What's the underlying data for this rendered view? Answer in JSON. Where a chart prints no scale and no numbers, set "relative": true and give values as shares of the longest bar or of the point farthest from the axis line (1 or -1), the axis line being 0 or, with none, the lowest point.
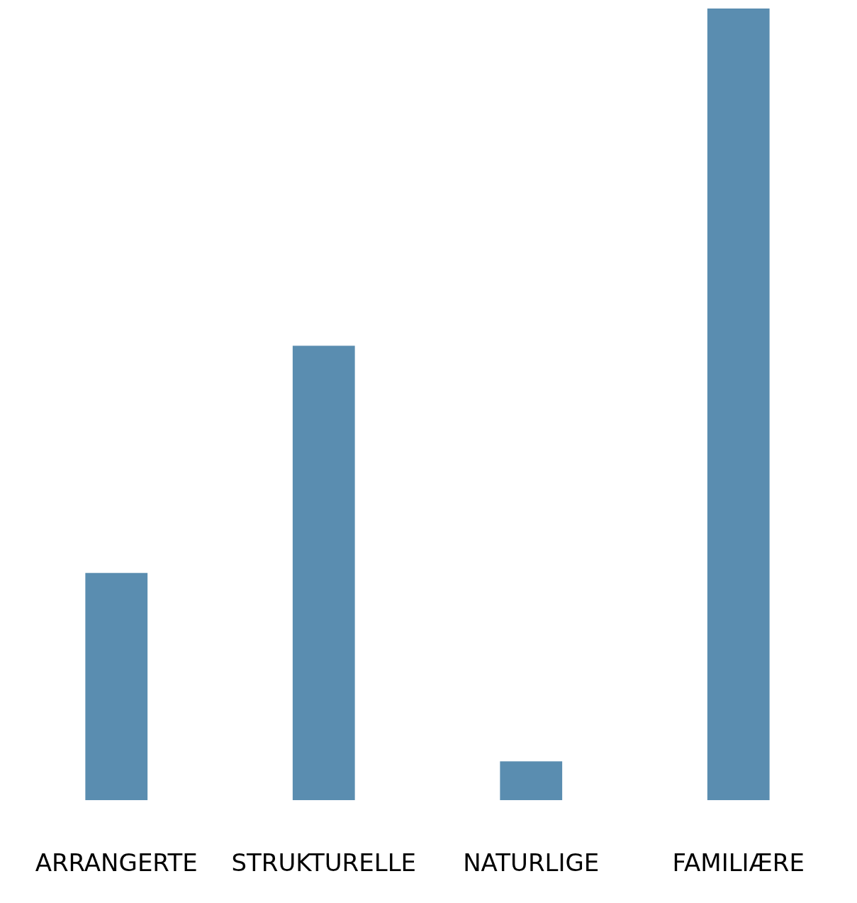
{
  "chart_data": {
    "type": "bar",
    "relative": true,
    "categories": [
      "ARRANGERTE",
      "STRUKTURELLE",
      "NATURLIGE",
      "FAMILIÆRE"
    ],
    "values": [
      0.287,
      0.574,
      0.049,
      1
    ],
    "color": "#5a8db0"
  }
}
